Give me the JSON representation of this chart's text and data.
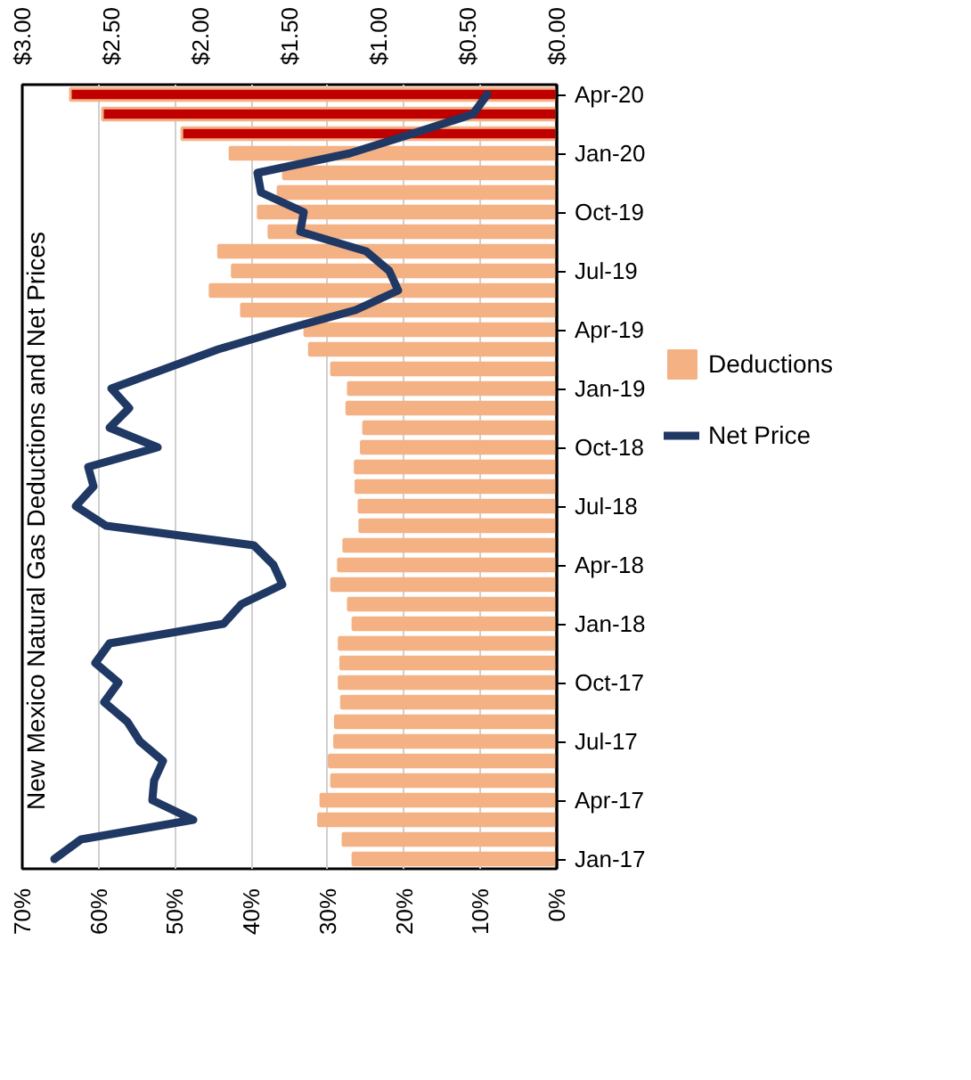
{
  "chart_data": {
    "type": "bar",
    "orientation": "horizontal",
    "title": "New Mexico Natural Gas Deductions and Net Prices",
    "categories": [
      "Apr-20",
      null,
      null,
      "Jan-20",
      null,
      null,
      "Oct-19",
      null,
      null,
      "Jul-19",
      null,
      null,
      "Apr-19",
      null,
      null,
      "Jan-19",
      null,
      null,
      "Oct-18",
      null,
      null,
      "Jul-18",
      null,
      null,
      "Apr-18",
      null,
      null,
      "Jan-18",
      null,
      null,
      "Oct-17",
      null,
      null,
      "Jul-17",
      null,
      null,
      "Apr-17",
      null,
      null,
      "Jan-17"
    ],
    "series": [
      {
        "name": "Deductions",
        "color": "#f4b183",
        "colors": [
          "#c00000",
          "#c00000",
          "#c00000",
          "#f4b183",
          "#f4b183",
          "#f4b183",
          "#f4b183",
          "#f4b183",
          "#f4b183",
          "#f4b183",
          "#f4b183",
          "#f4b183",
          "#f4b183",
          "#f4b183",
          "#f4b183",
          "#f4b183",
          "#f4b183",
          "#f4b183",
          "#f4b183",
          "#f4b183",
          "#f4b183",
          "#f4b183",
          "#f4b183",
          "#f4b183",
          "#f4b183",
          "#f4b183",
          "#f4b183",
          "#f4b183",
          "#f4b183",
          "#f4b183",
          "#f4b183",
          "#f4b183",
          "#f4b183",
          "#f4b183",
          "#f4b183",
          "#f4b183",
          "#f4b183",
          "#f4b183",
          "#f4b183",
          "#f4b183"
        ],
        "values": [
          63.7,
          59.5,
          49.1,
          42.8,
          35.8,
          36.5,
          39.1,
          37.7,
          44.3,
          42.5,
          45.4,
          41.3,
          33,
          32.4,
          29.5,
          27.3,
          27.5,
          25.3,
          25.6,
          26.4,
          26.3,
          25.9,
          25.8,
          27.9,
          28.6,
          29.5,
          27.3,
          26.7,
          28.5,
          28.3,
          28.5,
          28.2,
          29.0,
          29.1,
          29.8,
          29.5,
          30.9,
          31.2,
          28.0,
          26.7
        ]
      },
      {
        "name": "Net Price",
        "type": "line",
        "axis": "x2",
        "color": "#203864",
        "values": [
          0.39,
          0.47,
          0.81,
          1.16,
          1.68,
          1.66,
          1.42,
          1.44,
          1.07,
          0.94,
          0.89,
          1.13,
          1.53,
          1.9,
          2.2,
          2.5,
          2.4,
          2.51,
          2.24,
          2.63,
          2.6,
          2.7,
          2.53,
          1.7,
          1.59,
          1.54,
          1.77,
          1.87,
          2.51,
          2.59,
          2.46,
          2.54,
          2.41,
          2.34,
          2.21,
          2.26,
          2.27,
          2.04,
          2.67,
          2.82
        ]
      }
    ],
    "xlim": [
      70,
      0
    ],
    "xticks": [
      {
        "value": 70,
        "label": "70%"
      },
      {
        "value": 60,
        "label": "60%"
      },
      {
        "value": 50,
        "label": "50%"
      },
      {
        "value": 40,
        "label": "40%"
      },
      {
        "value": 30,
        "label": "30%"
      },
      {
        "value": 20,
        "label": "20%"
      },
      {
        "value": 10,
        "label": "10%"
      },
      {
        "value": 0,
        "label": "0%"
      }
    ],
    "x2lim": [
      3,
      0
    ],
    "x2ticks": [
      {
        "value": 3,
        "label": "$3.00"
      },
      {
        "value": 2.5,
        "label": "$2.50"
      },
      {
        "value": 2,
        "label": "$2.00"
      },
      {
        "value": 1.5,
        "label": "$1.50"
      },
      {
        "value": 1,
        "label": "$1.00"
      },
      {
        "value": 0.5,
        "label": "$0.50"
      },
      {
        "value": 0,
        "label": "$0.00"
      }
    ],
    "grid": "x",
    "legend": "right"
  }
}
